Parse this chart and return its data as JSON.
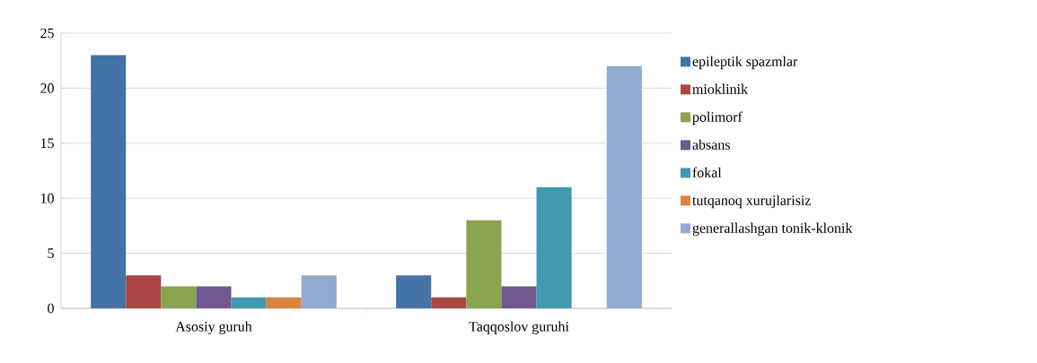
{
  "chart_data": {
    "type": "bar",
    "categories": [
      "Asosiy guruh",
      "Taqqoslov guruhi"
    ],
    "series": [
      {
        "name": "epileptik spazmlar",
        "color": "#4572a7",
        "values": [
          23,
          3
        ]
      },
      {
        "name": "mioklinik",
        "color": "#aa4643",
        "values": [
          3,
          1
        ]
      },
      {
        "name": "polimorf",
        "color": "#89a54e",
        "values": [
          2,
          8
        ]
      },
      {
        "name": "absans",
        "color": "#71588f",
        "values": [
          2,
          2
        ]
      },
      {
        "name": "fokal",
        "color": "#4198af",
        "values": [
          1,
          11
        ]
      },
      {
        "name": "tutqanoq xurujlarisiz",
        "color": "#db843d",
        "values": [
          1,
          null
        ]
      },
      {
        "name": "generallashgan tonik-klonik",
        "color": "#93a9cf",
        "values": [
          3,
          22
        ]
      }
    ],
    "ylim": [
      0,
      25
    ],
    "yticks": [
      0,
      5,
      10,
      15,
      20,
      25
    ],
    "grid": "y",
    "legend": "right"
  }
}
